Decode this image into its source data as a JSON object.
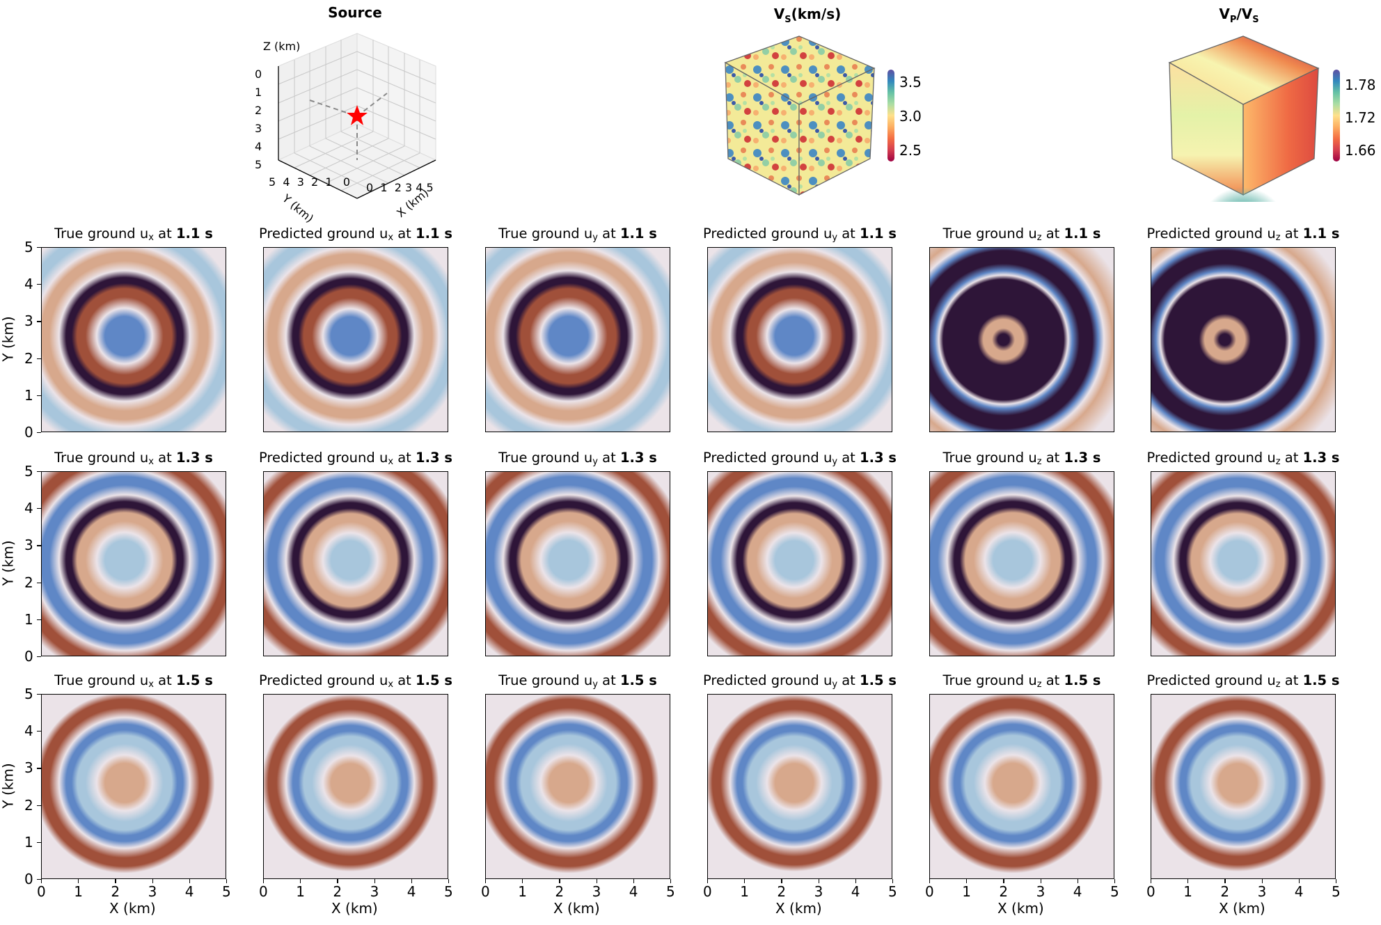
{
  "chart_data": {
    "type": "heatmap",
    "description": "Grid of ground-motion wavefield snapshots comparing true vs predicted displacement components",
    "header_panels": [
      {
        "id": "source",
        "title": "Source",
        "type": "3d-scatter",
        "axes": {
          "x": "X (km)",
          "y": "Y (km)",
          "z": "Z (km)"
        },
        "x_ticks": [
          0,
          1,
          2,
          3,
          4,
          5
        ],
        "y_ticks": [
          0,
          1,
          2,
          3,
          4,
          5
        ],
        "z_ticks": [
          0,
          1,
          2,
          3,
          4,
          5
        ],
        "source_location": {
          "x": 2.5,
          "y": 2.5,
          "z": 2.0,
          "marker": "red star"
        }
      },
      {
        "id": "vs",
        "title_main": "V",
        "title_sub": "S",
        "title_suffix": "(km/s)",
        "type": "3d-volume",
        "colormap": "Spectral",
        "colorbar_ticks": [
          "3.5",
          "3.0",
          "2.5"
        ],
        "range": [
          2.4,
          3.65
        ]
      },
      {
        "id": "vpvs",
        "title_main": "V",
        "title_sub": "P",
        "title_mid": "/V",
        "title_sub2": "S",
        "type": "3d-volume",
        "colormap": "Spectral",
        "colorbar_ticks": [
          "1.78",
          "1.72",
          "1.66"
        ],
        "range": [
          1.64,
          1.8
        ]
      }
    ],
    "grid": {
      "rows": [
        "1.1 s",
        "1.3 s",
        "1.5 s"
      ],
      "columns": [
        {
          "label_prefix": "True ground u",
          "component": "x"
        },
        {
          "label_prefix": "Predicted ground u",
          "component": "x"
        },
        {
          "label_prefix": "True ground u",
          "component": "y"
        },
        {
          "label_prefix": "Predicted ground u",
          "component": "y"
        },
        {
          "label_prefix": "True ground u",
          "component": "z"
        },
        {
          "label_prefix": "Predicted ground u",
          "component": "z"
        }
      ],
      "xlabel": "X (km)",
      "ylabel": "Y (km)",
      "xlim": [
        0,
        5
      ],
      "ylim": [
        0,
        5
      ],
      "x_ticks": [
        "0",
        "1",
        "2",
        "3",
        "4",
        "5"
      ],
      "y_ticks": [
        "0",
        "1",
        "2",
        "3",
        "4",
        "5"
      ],
      "colormap": "twilight_shifted (blue-white-red/dark purple)"
    },
    "title": "",
    "grid_lines": false,
    "legend": "none"
  },
  "labels": {
    "at": " at ",
    "seconds": [
      "1.1 s",
      "1.3 s",
      "1.5 s"
    ],
    "xlabel": "X (km)",
    "ylabel": "Y (km)",
    "source_title": "Source",
    "z_axis": "Z (km)",
    "y_axis3d": "Y (km)",
    "x_axis3d": "X (km)",
    "vs_title_v": "V",
    "vs_title_sub": "S",
    "vs_title_rest": "(km/s)",
    "vpvs_v1": "V",
    "vpvs_sub1": "P",
    "vpvs_mid": "/V",
    "vpvs_sub2": "S",
    "vs_ticks": [
      "3.5",
      "3.0",
      "2.5"
    ],
    "vpvs_ticks": [
      "1.78",
      "1.72",
      "1.66"
    ],
    "ticks": [
      "0",
      "1",
      "2",
      "3",
      "4",
      "5"
    ]
  },
  "colors": {
    "dark": "#2e1538",
    "purple": "#5b3a9a",
    "blue": "#5f87c6",
    "lightblue": "#a8c6dc",
    "white": "#ebe3e8",
    "peach": "#d7a88c",
    "red": "#a0503a",
    "maroon": "#6b1e35",
    "star": "#ff0000"
  }
}
